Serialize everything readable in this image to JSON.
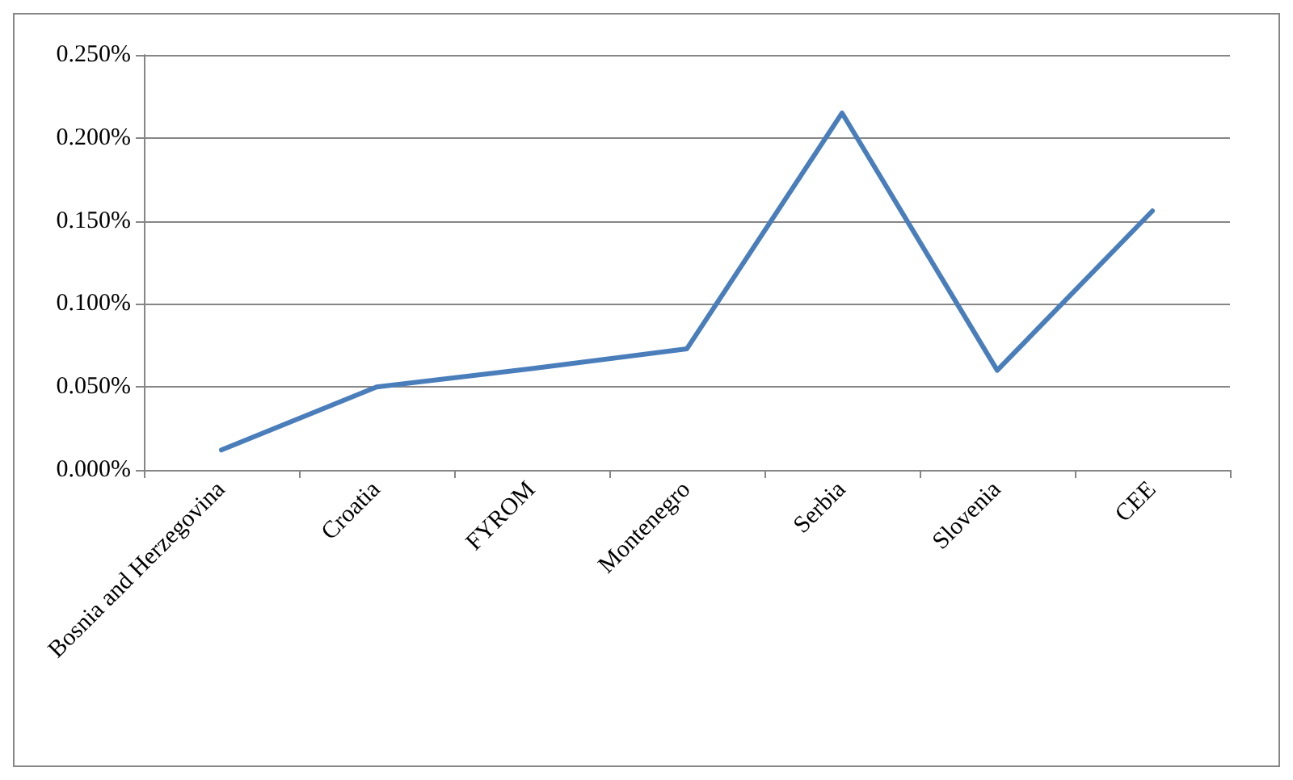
{
  "chart_data": {
    "type": "line",
    "categories": [
      "Bosnia and Herzegovina",
      "Croatia",
      "FYROM",
      "Montenegro",
      "Serbia",
      "Slovenia",
      "CEE"
    ],
    "series": [
      {
        "color": "#4a7ebb",
        "values": [
          0.012,
          0.05,
          0.061,
          0.073,
          0.215,
          0.06,
          0.156
        ]
      }
    ],
    "ylim": [
      0,
      0.25
    ],
    "yticks": [
      {
        "value": 0,
        "label": "0.000%"
      },
      {
        "value": 0.05,
        "label": "0.050%"
      },
      {
        "value": 0.1,
        "label": "0.100%"
      },
      {
        "value": 0.15,
        "label": "0.150%"
      },
      {
        "value": 0.2,
        "label": "0.200%"
      },
      {
        "value": 0.25,
        "label": "0.250%"
      }
    ],
    "grid": "y",
    "marker": "none",
    "line_style": "solid"
  }
}
